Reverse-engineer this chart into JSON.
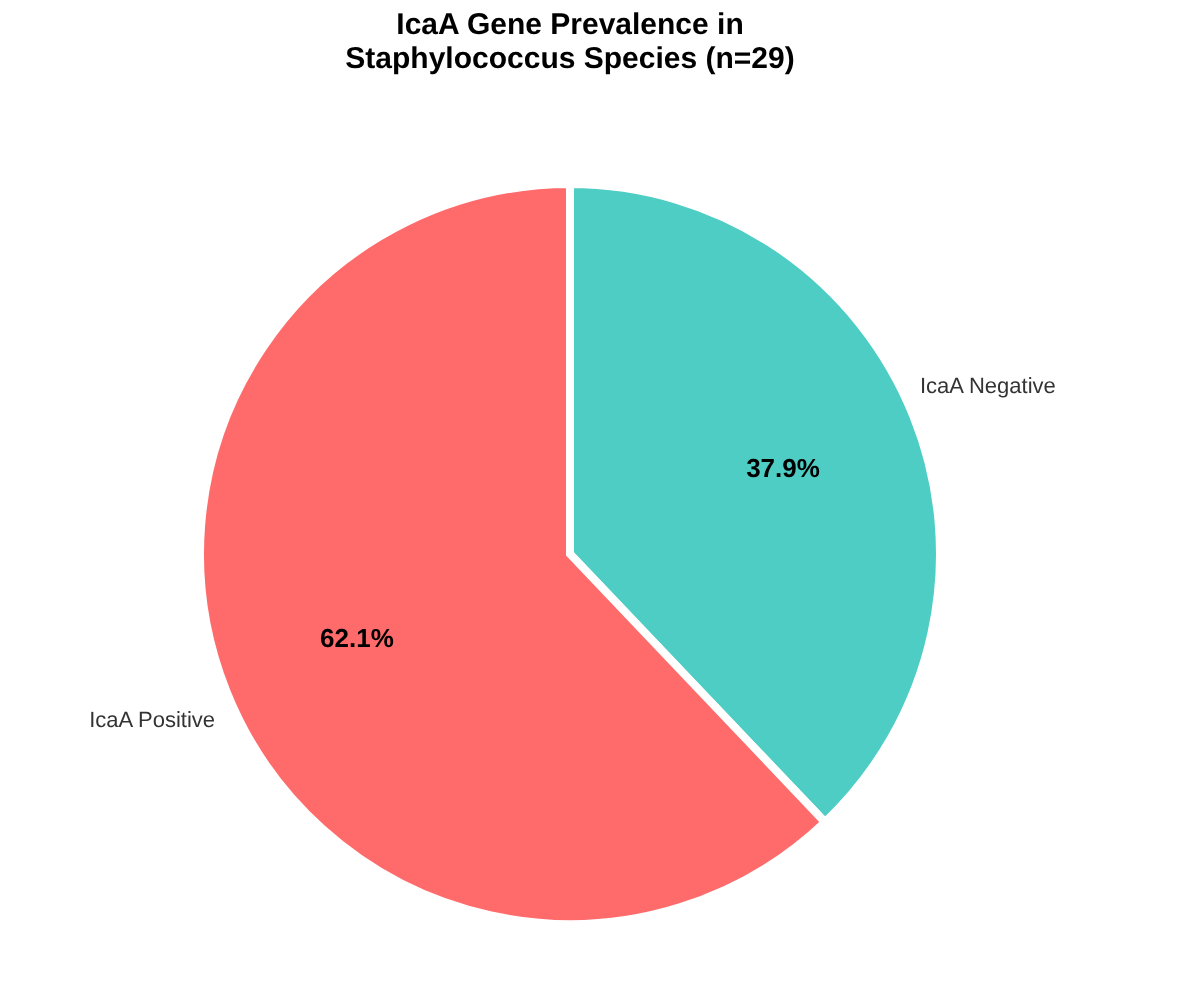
{
  "chart_data": {
    "type": "pie",
    "title": "IcaA Gene Prevalence in Staphylococcus Species (n=29)",
    "categories": [
      "IcaA Negative",
      "IcaA Positive"
    ],
    "values": [
      37.9,
      62.1
    ],
    "colors": [
      "#4ecdc4",
      "#ff6b6b"
    ],
    "value_labels": [
      "37.9%",
      "62.1%"
    ],
    "legend": false
  }
}
